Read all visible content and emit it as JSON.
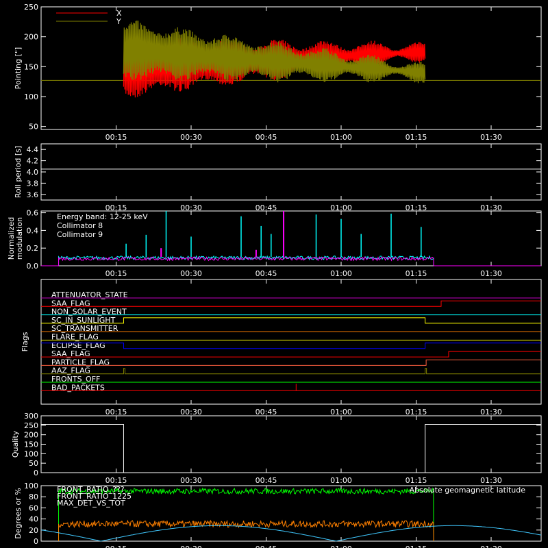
{
  "colors": {
    "x": "#ff0000",
    "y": "#808000",
    "c8": "#00ffff",
    "c9": "#ff00ff",
    "green": "#00ff00",
    "orange": "#ff8000",
    "yellow": "#ffff00",
    "blue": "#0000ff",
    "purple": "#c000c0",
    "coral": "#ff6040",
    "cyan": "#40c8ff"
  },
  "time_ticks": [
    "00:15",
    "00:30",
    "00:45",
    "01:00",
    "01:15",
    "01:30"
  ],
  "chart_data": [
    {
      "type": "line",
      "ylabel": "Pointing [\"]",
      "ylim": [
        45,
        250
      ],
      "yticks": [
        "50",
        "100",
        "150",
        "200",
        "250"
      ],
      "xlim_minutes": [
        0,
        100
      ],
      "legend": [
        {
          "name": "X",
          "color_key": "x"
        },
        {
          "name": "Y",
          "color_key": "y"
        }
      ],
      "baseline": 127,
      "series": [
        {
          "name": "X",
          "active_minutes": [
            16.5,
            76.8
          ],
          "center": [
            148,
            175
          ],
          "amplitude_start": 45,
          "amplitude_end": 10
        },
        {
          "name": "Y",
          "active_minutes": [
            16.5,
            76.8
          ],
          "center": [
            178,
            140
          ],
          "amplitude_start": 45,
          "amplitude_end": 10
        }
      ]
    },
    {
      "type": "line",
      "ylabel": "Roll period [s]",
      "ylim": [
        3.5,
        4.5
      ],
      "yticks": [
        "3.6",
        "3.8",
        "4.0",
        "4.2",
        "4.4"
      ],
      "series": [
        {
          "name": "roll",
          "value": 4.05
        }
      ]
    },
    {
      "type": "line",
      "ylabel_lines": [
        "Normalized",
        "modulation"
      ],
      "ylim": [
        0,
        0.62
      ],
      "yticks": [
        "0.0",
        "0.2",
        "0.4",
        "0.6"
      ],
      "annotations": [
        "Energy band: 12-25 keV",
        "Collimator 8",
        "Collimator 9"
      ],
      "active_minutes": [
        3.5,
        78.5
      ],
      "base_level": 0.09,
      "spikes_c8": [
        [
          17,
          0.25
        ],
        [
          21,
          0.35
        ],
        [
          25,
          0.62
        ],
        [
          30,
          0.33
        ],
        [
          40,
          0.56
        ],
        [
          44,
          0.45
        ],
        [
          46,
          0.36
        ],
        [
          55,
          0.58
        ],
        [
          60,
          0.53
        ],
        [
          64,
          0.36
        ],
        [
          70,
          0.59
        ],
        [
          76,
          0.44
        ]
      ],
      "spikes_c9": [
        [
          48.5,
          0.62
        ],
        [
          24,
          0.2
        ],
        [
          43,
          0.18
        ]
      ]
    },
    {
      "type": "line",
      "ylabel": "Flags",
      "flags": [
        {
          "name": "ATTENUATOR_STATE",
          "color_key": "purple"
        },
        {
          "name": "SAA_FLAG",
          "color_key": "x"
        },
        {
          "name": "NON_SOLAR_EVENT",
          "color_key": "c8"
        },
        {
          "name": "SC_IN_SUNLIGHT",
          "color_key": "yellow"
        },
        {
          "name": "SC_TRANSMITTER",
          "color_key": "orange"
        },
        {
          "name": "FLARE_FLAG",
          "color_key": "yellow"
        },
        {
          "name": "ECLIPSE_FLAG",
          "color_key": "blue"
        },
        {
          "name": "SAA_FLAG",
          "color_key": "x"
        },
        {
          "name": "PARTICLE_FLAG",
          "color_key": "coral"
        },
        {
          "name": "AAZ_FLAG",
          "color_key": "y"
        },
        {
          "name": "FRONTS_OFF",
          "color_key": "green"
        },
        {
          "name": "BAD_PACKETS",
          "color_key": "x"
        }
      ]
    },
    {
      "type": "line",
      "ylabel": "Quality",
      "ylim": [
        0,
        300
      ],
      "yticks": [
        "0",
        "50",
        "100",
        "150",
        "200",
        "250",
        "300"
      ],
      "series": [
        {
          "name": "quality",
          "high": 255,
          "low": 0,
          "drop_minutes": 16.5,
          "rise_minutes": 76.8
        }
      ]
    },
    {
      "type": "line",
      "ylabel": "Degrees or %",
      "ylim": [
        0,
        100
      ],
      "yticks": [
        "0",
        "20",
        "40",
        "60",
        "80",
        "100"
      ],
      "legend": [
        {
          "name": "FRONT_RATIO_???",
          "color_key": "yellow"
        },
        {
          "name": "FRONT_RATIO_1225",
          "color_key": "green"
        },
        {
          "name": "MAX_DET_VS_TOT",
          "color_key": "orange"
        }
      ],
      "annotations": [
        "Absolute geomagnetic latitude"
      ],
      "series": [
        {
          "name": "FRONT_RATIO_1225",
          "active_minutes": [
            3.5,
            78.5
          ],
          "mean": 90
        },
        {
          "name": "MAX_DET_VS_TOT",
          "active_minutes": [
            3.5,
            78.5
          ],
          "mean": 31
        },
        {
          "name": "Absolute geomagnetic latitude",
          "peak": 28,
          "minima_minutes": [
            12,
            59
          ]
        }
      ]
    }
  ]
}
